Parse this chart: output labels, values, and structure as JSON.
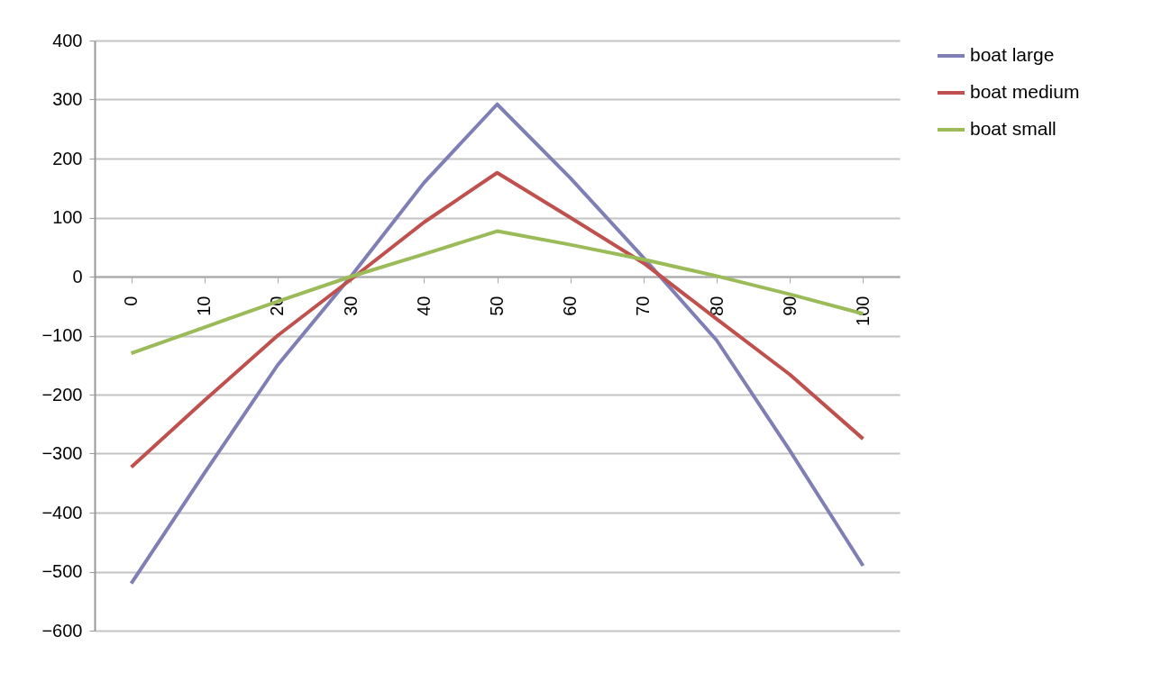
{
  "chart_data": {
    "type": "line",
    "categories": [
      "0",
      "10",
      "20",
      "30",
      "40",
      "50",
      "60",
      "70",
      "80",
      "90",
      "100"
    ],
    "series": [
      {
        "name": "boat large",
        "color": "#7f7fb5",
        "values": [
          -520,
          -333,
          -150,
          0,
          159,
          292,
          167,
          32,
          -108,
          -295,
          -490
        ]
      },
      {
        "name": "boat medium",
        "color": "#c0504d",
        "values": [
          -323,
          -210,
          -100,
          -5,
          92,
          176,
          100,
          23,
          -72,
          -166,
          -275
        ]
      },
      {
        "name": "boat small",
        "color": "#9bbb59",
        "values": [
          -130,
          -86,
          -42,
          0,
          38,
          77,
          54,
          29,
          1,
          -30,
          -63
        ]
      }
    ],
    "ylim": [
      -600,
      400
    ],
    "yticks": [
      -600,
      -500,
      -400,
      -300,
      -200,
      -100,
      0,
      100,
      200,
      300,
      400
    ],
    "grid": "y",
    "legend": "right",
    "marker": "none",
    "line_style": "solid"
  }
}
